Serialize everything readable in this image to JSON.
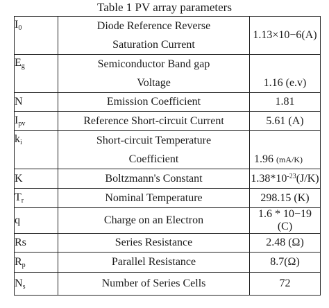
{
  "caption": "Table 1 PV array parameters",
  "rows": [
    {
      "symbol": "I",
      "sub": "0",
      "desc1": "Diode Reference Reverse",
      "desc2": "Saturation Current",
      "value": "1.13×10−6(A)"
    },
    {
      "symbol": "E",
      "sub": "g",
      "desc1": "Semiconductor Band gap",
      "desc2": "Voltage",
      "value": "1.16 (e.v)"
    },
    {
      "symbol": "N",
      "sub": "",
      "desc1": "Emission Coefficient",
      "value": "1.81"
    },
    {
      "symbol": "I",
      "sub": "pv",
      "desc1": "Reference Short-circuit Current",
      "value": "5.61 (A)"
    },
    {
      "symbol": "k",
      "sub": "i",
      "desc1": "Short-circuit Temperature",
      "desc2": "Coefficient",
      "value": "1.96",
      "unit": "(mA/K)"
    },
    {
      "symbol": "K",
      "sub": "",
      "desc1": "Boltzmann's Constant",
      "value": "1.38*10",
      "sup": "-23",
      "unit": "(J/K)"
    },
    {
      "symbol": "T",
      "sub": "r",
      "desc1": "Nominal Temperature",
      "value": "298.15 (K)"
    },
    {
      "symbol": "q",
      "sub": "",
      "desc1": "Charge on an Electron",
      "value": "1.6 * 10−19 (C)"
    },
    {
      "symbol": "Rs",
      "sub": "",
      "desc1": "Series Resistance",
      "value": "2.48 (Ω)"
    },
    {
      "symbol": "R",
      "sub": "p",
      "desc1": "Parallel Resistance",
      "value": "8.7(Ω)"
    },
    {
      "symbol": "N",
      "sub": "s",
      "desc1": "Number of Series Cells",
      "value": "72"
    }
  ]
}
